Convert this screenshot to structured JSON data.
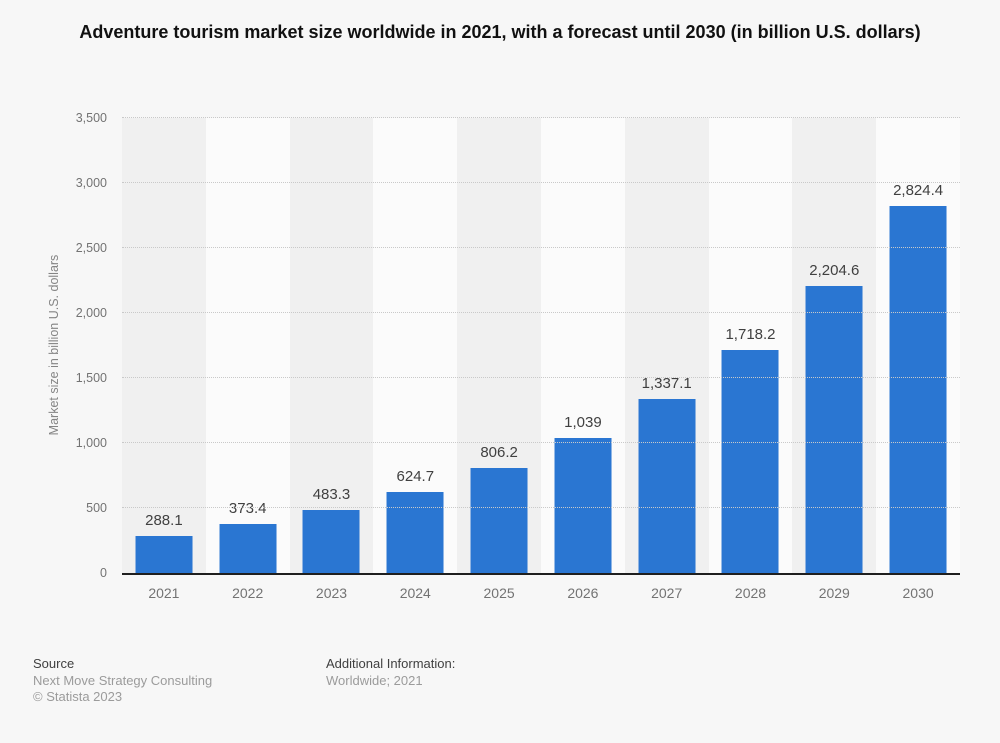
{
  "title": "Adventure tourism market size worldwide in 2021, with a forecast until 2030 (in billion U.S. dollars)",
  "chart_data": {
    "type": "bar",
    "categories": [
      "2021",
      "2022",
      "2023",
      "2024",
      "2025",
      "2026",
      "2027",
      "2028",
      "2029",
      "2030"
    ],
    "values": [
      288.1,
      373.4,
      483.3,
      624.7,
      806.2,
      1039,
      1337.1,
      1718.2,
      2204.6,
      2824.4
    ],
    "value_labels": [
      "288.1",
      "373.4",
      "483.3",
      "624.7",
      "806.2",
      "1,039",
      "1,337.1",
      "1,718.2",
      "2,204.6",
      "2,824.4"
    ],
    "title": "Adventure tourism market size worldwide in 2021, with a forecast until 2030 (in billion U.S. dollars)",
    "xlabel": "",
    "ylabel": "Market size in billion U.S. dollars",
    "ylim": [
      0,
      3500
    ],
    "ytick_step": 500,
    "ytick_labels": [
      "0",
      "500",
      "1,000",
      "1,500",
      "2,000",
      "2,500",
      "3,000",
      "3,500"
    ],
    "grid": "horizontal-dotted",
    "legend": "none",
    "bar_color": "#2a76d2"
  },
  "colors": {
    "bar": "#2a76d2",
    "page_background": "#f7f7f7",
    "stripe_dark": "#f0f0f0",
    "stripe_light": "#fbfbfb",
    "gridline": "#c9c9c9",
    "axis_line": "#1f1f1f"
  },
  "footer": {
    "source_label": "Source",
    "source_name": "Next Move Strategy Consulting",
    "copyright": "© Statista 2023",
    "additional_info_label": "Additional Information:",
    "additional_info_value": "Worldwide; 2021"
  }
}
